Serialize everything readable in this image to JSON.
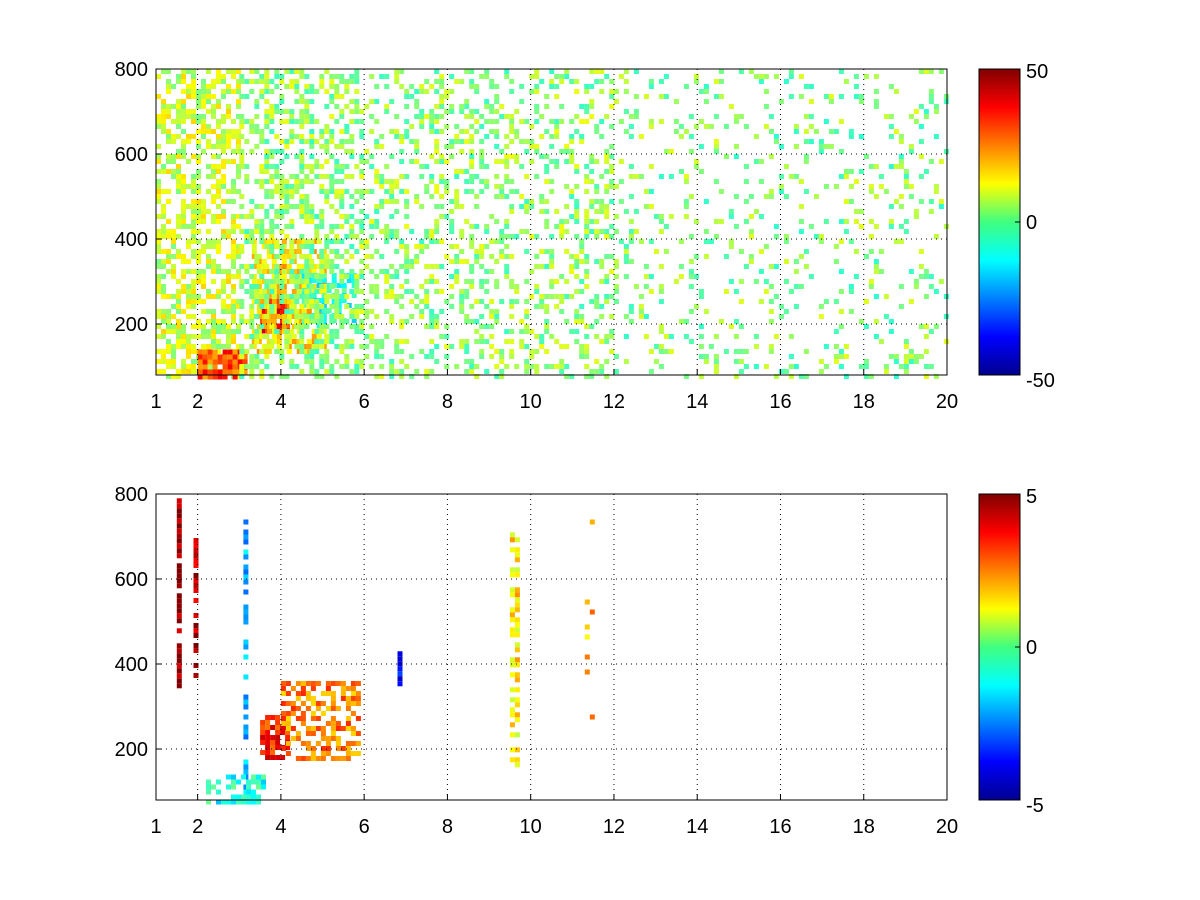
{
  "chart_data": [
    {
      "type": "heatmap",
      "title": "",
      "xlabel": "",
      "ylabel": "",
      "xlim": [
        1,
        20
      ],
      "ylim": [
        80,
        800
      ],
      "xticks": [
        1,
        2,
        4,
        6,
        8,
        10,
        12,
        14,
        16,
        18,
        20
      ],
      "xtick_labels": [
        "1",
        "2",
        "4",
        "6",
        "8",
        "10",
        "12",
        "14",
        "16",
        "18",
        "20"
      ],
      "yticks": [
        200,
        400,
        600,
        800
      ],
      "ytick_labels": [
        "200",
        "400",
        "600",
        "800"
      ],
      "grid": true,
      "colormap": "jet",
      "clim": [
        -50,
        50
      ],
      "colorbar_ticks": [
        50,
        0,
        -50
      ],
      "colorbar_labels": [
        "50",
        "0",
        "-50"
      ],
      "description_of_cells": [
        {
          "x": [
            1.0,
            3.0
          ],
          "y": [
            80,
            800
          ],
          "value": 8,
          "density": 0.55
        },
        {
          "x": [
            2.0,
            3.2
          ],
          "y": [
            80,
            140
          ],
          "value": 30,
          "density": 0.9
        },
        {
          "x": [
            3.5,
            4.2
          ],
          "y": [
            180,
            260
          ],
          "value": 35,
          "density": 0.95
        },
        {
          "x": [
            3.3,
            5.0
          ],
          "y": [
            140,
            400
          ],
          "value": 15,
          "density": 0.7
        },
        {
          "x": [
            4.5,
            5.8
          ],
          "y": [
            200,
            320
          ],
          "value": -10,
          "density": 0.6
        },
        {
          "x": [
            3.0,
            6.0
          ],
          "y": [
            80,
            800
          ],
          "value": 2,
          "density": 0.45
        },
        {
          "x": [
            6.0,
            12.0
          ],
          "y": [
            80,
            800
          ],
          "value": 2,
          "density": 0.3
        },
        {
          "x": [
            12.0,
            20.0
          ],
          "y": [
            80,
            800
          ],
          "value": 1,
          "density": 0.14
        }
      ]
    },
    {
      "type": "heatmap",
      "title": "",
      "xlabel": "",
      "ylabel": "",
      "xlim": [
        1,
        20
      ],
      "ylim": [
        80,
        800
      ],
      "xticks": [
        1,
        2,
        4,
        6,
        8,
        10,
        12,
        14,
        16,
        18,
        20
      ],
      "xtick_labels": [
        "1",
        "2",
        "4",
        "6",
        "8",
        "10",
        "12",
        "14",
        "16",
        "18",
        "20"
      ],
      "yticks": [
        200,
        400,
        600,
        800
      ],
      "ytick_labels": [
        "200",
        "400",
        "600",
        "800"
      ],
      "grid": true,
      "colormap": "jet",
      "clim": [
        -5,
        5
      ],
      "colorbar_ticks": [
        5,
        0,
        -5
      ],
      "colorbar_labels": [
        "5",
        "0",
        "-5"
      ],
      "description_of_cells": [
        {
          "x": [
            1.5,
            1.6
          ],
          "y": [
            350,
            790
          ],
          "value": 5,
          "density": 0.9
        },
        {
          "x": [
            1.9,
            2.0
          ],
          "y": [
            370,
            720
          ],
          "value": 4.5,
          "density": 0.7
        },
        {
          "x": [
            3.1,
            3.2
          ],
          "y": [
            80,
            740
          ],
          "value": -2,
          "density": 0.6
        },
        {
          "x": [
            3.5,
            4.2
          ],
          "y": [
            180,
            280
          ],
          "value": 3.5,
          "density": 0.85
        },
        {
          "x": [
            4.0,
            5.9
          ],
          "y": [
            180,
            360
          ],
          "value": 2.5,
          "density": 0.5
        },
        {
          "x": [
            2.2,
            3.6
          ],
          "y": [
            80,
            140
          ],
          "value": -1,
          "density": 0.6
        },
        {
          "x": [
            6.8,
            6.9
          ],
          "y": [
            340,
            430
          ],
          "value": -3.5,
          "density": 0.9
        },
        {
          "x": [
            9.5,
            9.65
          ],
          "y": [
            160,
            710
          ],
          "value": 1.5,
          "density": 0.55
        },
        {
          "x": [
            11.3,
            11.45
          ],
          "y": [
            280,
            740
          ],
          "value": 2,
          "density": 0.1
        }
      ]
    }
  ]
}
